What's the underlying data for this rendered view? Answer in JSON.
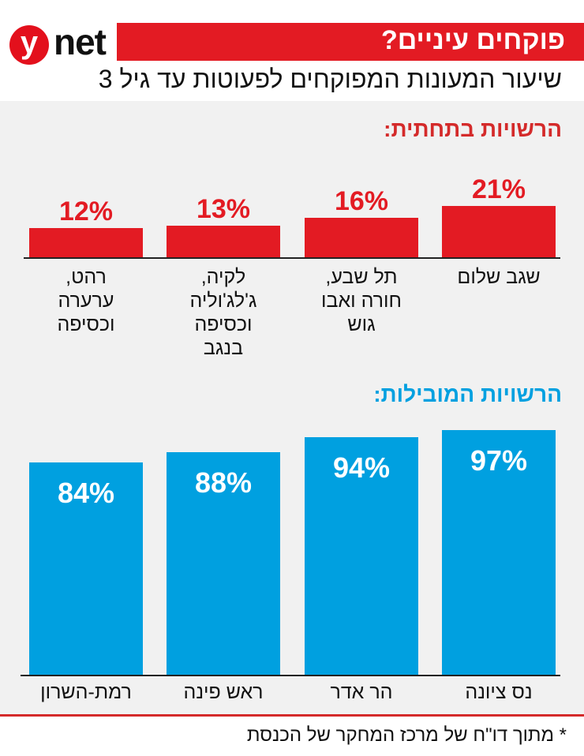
{
  "brand": {
    "logo_letter": "y",
    "logo_text": "net",
    "logo_color": "#e3101c"
  },
  "title": "פוקחים עיניים?",
  "subtitle": "שיעור המעונות המפוקחים לפעוטות עד גיל 3",
  "footnote": "* מתוך דו\"ח של מרכז המחקר של הכנסת",
  "chart_data": [
    {
      "type": "bar",
      "title": "הרשויות בתחתית:",
      "color": "#e31b23",
      "categories": [
        "שגב שלום",
        "תל שבע, חורה ואבו גוש",
        "לקיה, ג'לג'וליה וכסיפה בנגב",
        "רהט, ערערה וכסיפה"
      ],
      "values": [
        21,
        16,
        13,
        12
      ],
      "labels": [
        "21%",
        "16%",
        "13%",
        "12%"
      ],
      "order": "right-to-left"
    },
    {
      "type": "bar",
      "title": "הרשויות המובילות:",
      "color": "#00a0e0",
      "categories": [
        "נס ציונה",
        "הר אדר",
        "ראש פינה",
        "רמת-השרון"
      ],
      "values": [
        97,
        94,
        88,
        84
      ],
      "labels": [
        "97%",
        "94%",
        "88%",
        "84%"
      ],
      "order": "right-to-left"
    }
  ]
}
